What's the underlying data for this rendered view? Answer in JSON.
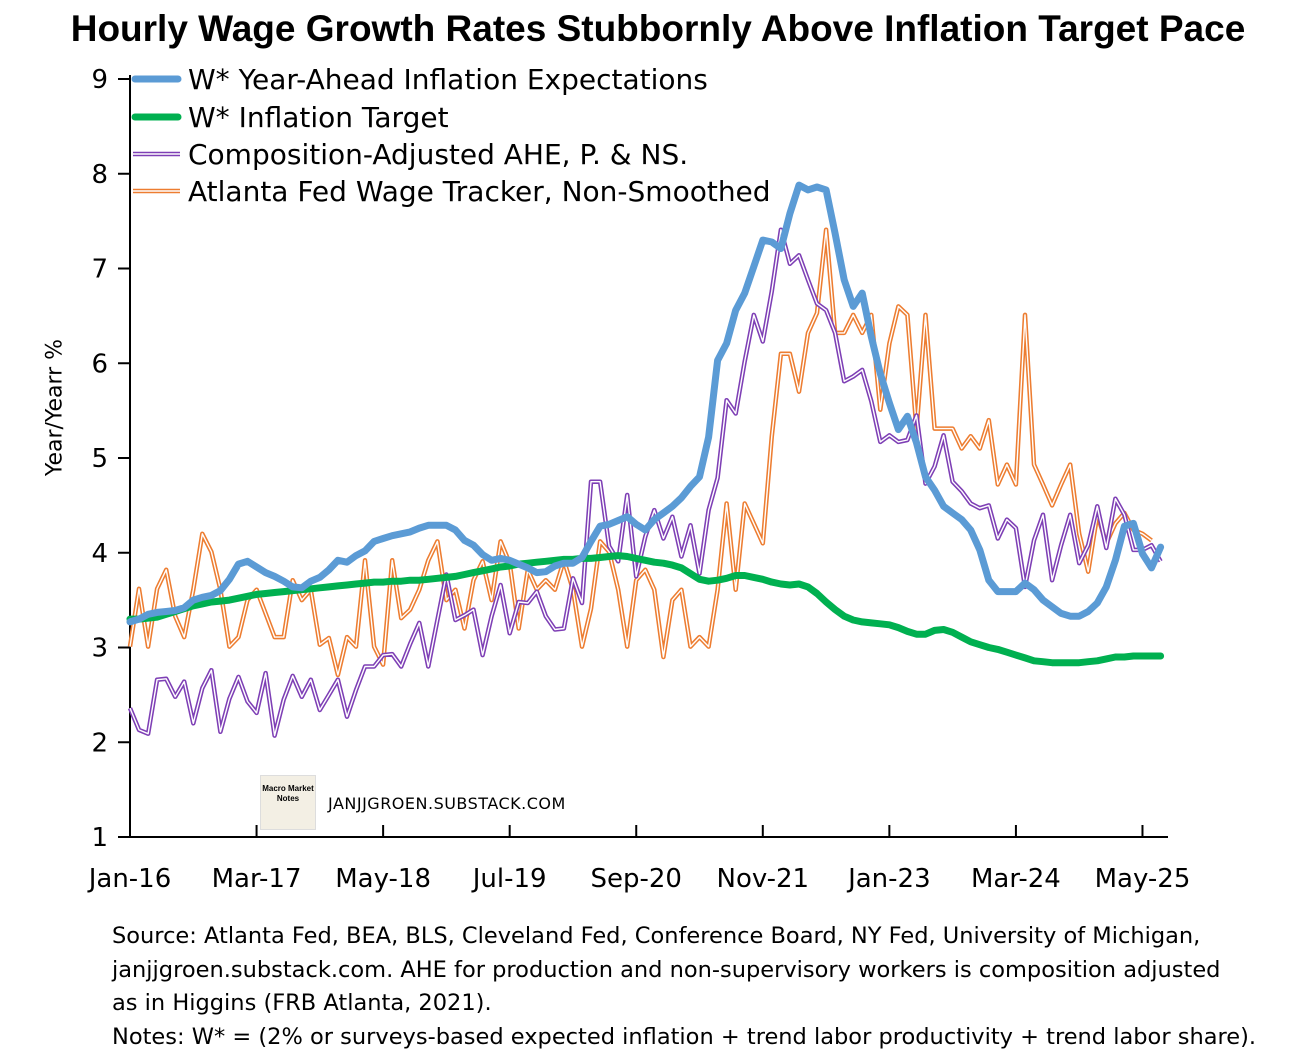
{
  "chart_data": {
    "type": "line",
    "title": "Hourly Wage Growth Rates Stubbornly Above Inflation Target Pace",
    "ylabel": "Year/Yearr %",
    "xlabel": "",
    "ylim": [
      1,
      9
    ],
    "yticks": [
      "1",
      "2",
      "3",
      "4",
      "5",
      "6",
      "7",
      "8",
      "9"
    ],
    "x_start": "Jan-16",
    "x_frequency": "monthly",
    "xticks": [
      {
        "label": "Jan-16",
        "month_index": 0
      },
      {
        "label": "Mar-17",
        "month_index": 14
      },
      {
        "label": "May-18",
        "month_index": 28
      },
      {
        "label": "Jul-19",
        "month_index": 42
      },
      {
        "label": "Sep-20",
        "month_index": 56
      },
      {
        "label": "Nov-21",
        "month_index": 70
      },
      {
        "label": "Jan-23",
        "month_index": 84
      },
      {
        "label": "Mar-24",
        "month_index": 98
      },
      {
        "label": "May-25",
        "month_index": 112
      }
    ],
    "grid": false,
    "legend_position": "top-left",
    "series": [
      {
        "name": "W* Year-Ahead Inflation Expectations",
        "color": "#5B9BD5",
        "style": "thick",
        "values": [
          3.27,
          3.3,
          3.35,
          3.37,
          3.38,
          3.39,
          3.42,
          3.5,
          3.53,
          3.55,
          3.6,
          3.72,
          3.88,
          3.91,
          3.85,
          3.79,
          3.75,
          3.7,
          3.64,
          3.63,
          3.7,
          3.74,
          3.82,
          3.92,
          3.9,
          3.97,
          4.02,
          4.12,
          4.15,
          4.18,
          4.2,
          4.22,
          4.26,
          4.29,
          4.29,
          4.29,
          4.24,
          4.13,
          4.08,
          3.98,
          3.92,
          3.94,
          3.92,
          3.88,
          3.84,
          3.79,
          3.8,
          3.86,
          3.89,
          3.89,
          3.95,
          4.12,
          4.28,
          4.3,
          4.34,
          4.38,
          4.3,
          4.24,
          4.35,
          4.42,
          4.49,
          4.58,
          4.7,
          4.8,
          5.22,
          6.03,
          6.21,
          6.56,
          6.74,
          7.02,
          7.3,
          7.28,
          7.21,
          7.58,
          7.88,
          7.83,
          7.86,
          7.83,
          7.37,
          6.88,
          6.6,
          6.74,
          6.28,
          5.89,
          5.58,
          5.3,
          5.44,
          5.16,
          4.8,
          4.66,
          4.49,
          4.42,
          4.35,
          4.24,
          4.03,
          3.71,
          3.59,
          3.59,
          3.59,
          3.68,
          3.61,
          3.5,
          3.43,
          3.36,
          3.33,
          3.33,
          3.38,
          3.47,
          3.64,
          3.92,
          4.28,
          4.31,
          3.99,
          3.84,
          4.06
        ]
      },
      {
        "name": "W* Inflation Target",
        "color": "#00B050",
        "style": "thick",
        "values": [
          3.3,
          3.3,
          3.31,
          3.32,
          3.35,
          3.38,
          3.41,
          3.44,
          3.46,
          3.48,
          3.49,
          3.5,
          3.52,
          3.54,
          3.56,
          3.57,
          3.58,
          3.59,
          3.6,
          3.61,
          3.62,
          3.63,
          3.64,
          3.65,
          3.66,
          3.67,
          3.68,
          3.69,
          3.69,
          3.7,
          3.7,
          3.71,
          3.71,
          3.72,
          3.73,
          3.74,
          3.75,
          3.77,
          3.79,
          3.81,
          3.83,
          3.85,
          3.86,
          3.88,
          3.89,
          3.9,
          3.91,
          3.92,
          3.93,
          3.93,
          3.94,
          3.94,
          3.95,
          3.96,
          3.97,
          3.96,
          3.94,
          3.92,
          3.9,
          3.89,
          3.87,
          3.84,
          3.78,
          3.72,
          3.7,
          3.71,
          3.73,
          3.76,
          3.76,
          3.74,
          3.72,
          3.69,
          3.67,
          3.66,
          3.67,
          3.64,
          3.57,
          3.48,
          3.4,
          3.33,
          3.29,
          3.27,
          3.26,
          3.25,
          3.24,
          3.21,
          3.17,
          3.14,
          3.14,
          3.18,
          3.19,
          3.16,
          3.11,
          3.06,
          3.03,
          3.0,
          2.98,
          2.95,
          2.92,
          2.89,
          2.86,
          2.85,
          2.84,
          2.84,
          2.84,
          2.84,
          2.85,
          2.86,
          2.88,
          2.9,
          2.9,
          2.91,
          2.91,
          2.91,
          2.91
        ]
      },
      {
        "name": "Composition-Adjusted AHE, P. & NS.",
        "color": "#7E3FB5",
        "style": "double",
        "values": [
          2.36,
          2.13,
          2.09,
          2.66,
          2.67,
          2.48,
          2.64,
          2.2,
          2.57,
          2.76,
          2.11,
          2.46,
          2.69,
          2.43,
          2.31,
          2.73,
          2.07,
          2.45,
          2.7,
          2.48,
          2.66,
          2.34,
          2.5,
          2.66,
          2.27,
          2.55,
          2.8,
          2.8,
          2.92,
          2.93,
          2.8,
          3.04,
          3.26,
          2.8,
          3.29,
          3.77,
          3.29,
          3.34,
          3.4,
          2.92,
          3.33,
          3.66,
          3.15,
          3.48,
          3.47,
          3.59,
          3.33,
          3.19,
          3.2,
          3.73,
          3.47,
          4.75,
          4.75,
          4.07,
          3.91,
          4.61,
          3.75,
          4.17,
          4.45,
          4.15,
          4.38,
          3.96,
          4.29,
          3.78,
          4.45,
          4.79,
          5.61,
          5.47,
          6.02,
          6.51,
          6.23,
          6.76,
          7.41,
          7.05,
          7.14,
          6.88,
          6.63,
          6.56,
          6.32,
          5.81,
          5.86,
          5.93,
          5.6,
          5.17,
          5.24,
          5.17,
          5.19,
          5.45,
          4.73,
          4.91,
          5.24,
          4.75,
          4.65,
          4.52,
          4.47,
          4.5,
          4.15,
          4.35,
          4.26,
          3.64,
          4.13,
          4.4,
          3.71,
          4.08,
          4.4,
          3.89,
          4.08,
          4.49,
          4.05,
          4.57,
          4.4,
          4.03,
          4.03,
          4.08,
          3.91
        ]
      },
      {
        "name": "Atlanta Fed Wage Tracker, Non-Smoothed",
        "color": "#ED7D31",
        "style": "double",
        "values": [
          3.01,
          3.62,
          3.01,
          3.62,
          3.82,
          3.33,
          3.11,
          3.61,
          4.2,
          4.01,
          3.61,
          3.01,
          3.11,
          3.5,
          3.61,
          3.36,
          3.11,
          3.11,
          3.71,
          3.5,
          3.61,
          3.03,
          3.1,
          2.71,
          3.11,
          3.01,
          3.92,
          3.01,
          2.82,
          3.92,
          3.31,
          3.4,
          3.61,
          3.92,
          4.12,
          3.5,
          3.61,
          3.2,
          3.71,
          3.91,
          3.5,
          4.12,
          3.89,
          3.2,
          3.82,
          3.61,
          3.71,
          3.61,
          3.92,
          3.61,
          3.01,
          3.41,
          4.12,
          4.01,
          3.61,
          3.01,
          3.71,
          3.82,
          3.61,
          2.9,
          3.5,
          3.61,
          3.01,
          3.11,
          3.01,
          3.61,
          4.52,
          3.61,
          4.52,
          4.31,
          4.1,
          5.23,
          6.1,
          6.1,
          5.7,
          6.32,
          6.53,
          7.41,
          6.32,
          6.32,
          6.51,
          6.32,
          6.51,
          5.51,
          6.21,
          6.6,
          6.51,
          5.3,
          6.51,
          5.31,
          5.31,
          5.31,
          5.1,
          5.23,
          5.1,
          5.4,
          4.72,
          4.93,
          4.72,
          6.51,
          4.93,
          4.72,
          4.5,
          4.72,
          4.93,
          4.2,
          3.8,
          4.4,
          4.1,
          4.31,
          4.42,
          4.24,
          4.2,
          4.13
        ]
      }
    ]
  },
  "watermark": {
    "logo_text": "Macro Market Notes",
    "site": "JANJJGROEN.SUBSTACK.COM"
  },
  "notes": [
    "Source: Atlanta Fed, BEA, BLS, Cleveland Fed, Conference Board, NY Fed, University of Michigan,",
    "janjjgroen.substack.com. AHE for production and non-supervisory workers is composition adjusted",
    "as in Higgins (FRB Atlanta, 2021).",
    "Notes: W* = (2% or surveys-based expected inflation + trend labor productivity + trend labor share)."
  ]
}
